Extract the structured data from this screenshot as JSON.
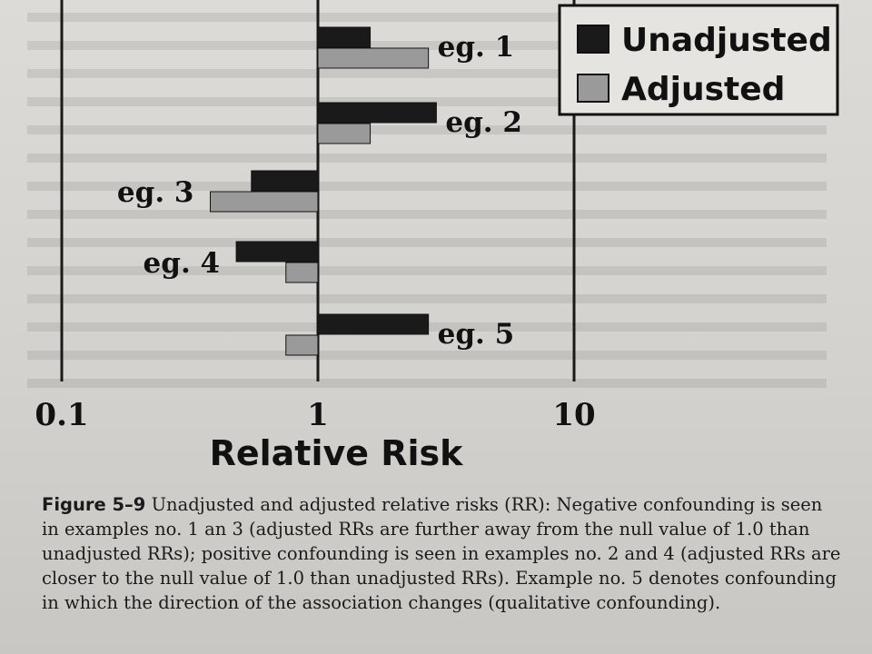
{
  "chart_data": {
    "type": "bar",
    "orientation": "horizontal",
    "scale": "log",
    "xlim": [
      0.1,
      10
    ],
    "xticks": [
      "0.1",
      "1",
      "10"
    ],
    "xlabel": "Relative Risk",
    "reference_line": 1,
    "categories": [
      "eg. 1",
      "eg. 2",
      "eg. 3",
      "eg. 4",
      "eg. 5"
    ],
    "series": [
      {
        "name": "Unadjusted",
        "color": "#1a1a1a",
        "values": [
          1.6,
          2.9,
          0.55,
          0.48,
          2.7
        ]
      },
      {
        "name": "Adjusted",
        "color": "#9a9a9a",
        "values": [
          2.7,
          1.6,
          0.38,
          0.75,
          0.75
        ]
      }
    ],
    "legend": "top-right"
  },
  "caption": {
    "label": "Figure 5–9",
    "text": "Unadjusted and adjusted relative risks (RR): Negative confounding is seen in examples no. 1 an 3 (adjusted RRs are further away from the null value of 1.0 than unadjusted RRs); positive confounding is seen in examples no. 2 and 4 (adjusted RRs are closer to the null value of 1.0 than unadjusted RRs). Example no. 5 denotes confounding in which the direction of the association changes (qualitative confounding)."
  }
}
